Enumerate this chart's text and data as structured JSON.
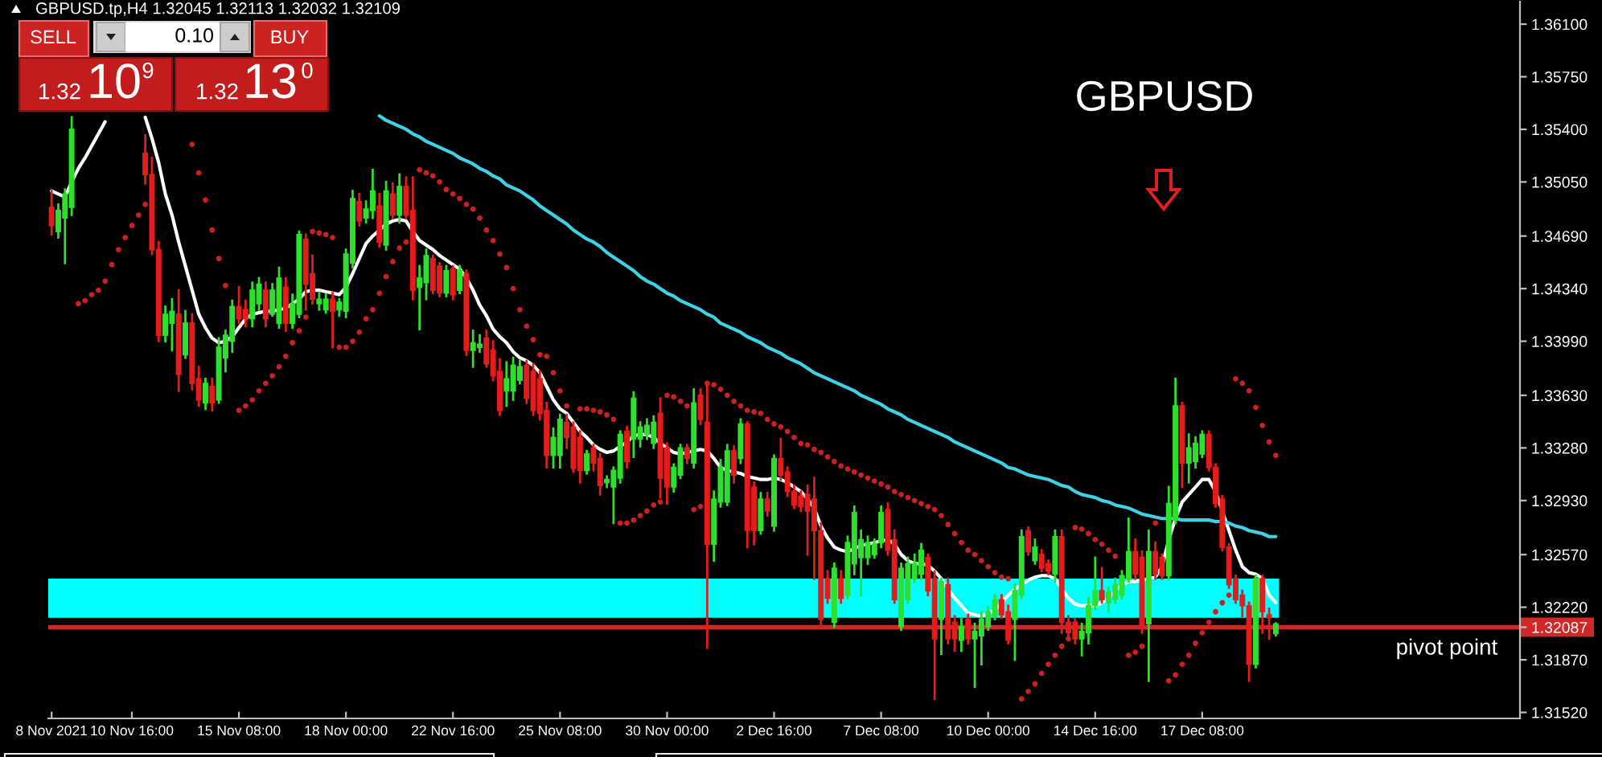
{
  "chart_data": {
    "type": "candlestick",
    "title": "GBPUSD",
    "subtitle": "GBPUSD.tp,H4 1.32045 1.32113 1.32032 1.32109",
    "annotations": [
      "SELL",
      "0.10",
      "BUY",
      "1.32",
      "10",
      "9",
      "1.32",
      "13",
      "0"
    ],
    "categories": [
      "8 Nov 2021",
      null,
      null,
      null,
      null,
      null,
      null,
      null,
      null,
      null,
      null,
      null,
      "10 Nov 16:00",
      null,
      null,
      null,
      null,
      null,
      null,
      null,
      null,
      null,
      null,
      null,
      null,
      null,
      null,
      null,
      "15 Nov 08:00",
      null,
      null,
      null,
      null,
      null,
      null,
      null,
      null,
      null,
      null,
      null,
      null,
      null,
      null,
      null,
      "18 Nov 00:00",
      null,
      null,
      null,
      null,
      null,
      null,
      null,
      null,
      null,
      null,
      null,
      null,
      null,
      null,
      null,
      "22 Nov 16:00",
      null,
      null,
      null,
      null,
      null,
      null,
      null,
      null,
      null,
      null,
      null,
      null,
      null,
      null,
      null,
      "25 Nov 08:00",
      null,
      null,
      null,
      null,
      null,
      null,
      null,
      null,
      null,
      null,
      null,
      null,
      null,
      null,
      null,
      "30 Nov 00:00",
      null,
      null,
      null,
      null,
      null,
      null,
      null,
      null,
      null,
      null,
      null,
      null,
      null,
      null,
      null,
      "2 Dec 16:00",
      null,
      null,
      null,
      null,
      null,
      null,
      null,
      null,
      null,
      null,
      null,
      null,
      null,
      null,
      null,
      "7 Dec 08:00",
      null,
      null,
      null,
      null,
      null,
      null,
      null,
      null,
      null,
      null,
      null,
      null,
      null,
      null,
      null,
      "10 Dec 00:00",
      null,
      null,
      null,
      null,
      null,
      null,
      null,
      null,
      null,
      null,
      null,
      null,
      null,
      null,
      null,
      "14 Dec 16:00",
      null,
      null,
      null,
      null,
      null,
      null,
      null,
      null,
      null,
      null,
      null,
      null,
      null,
      null,
      null,
      "17 Dec 08:00",
      null,
      null,
      null,
      null,
      null,
      null,
      null,
      null,
      null,
      null,
      null,
      null,
      null,
      null,
      null,
      null,
      null,
      null,
      null,
      null,
      null,
      null,
      null,
      null,
      null,
      null,
      null,
      null,
      null,
      null,
      null,
      null,
      null,
      null,
      null,
      null,
      null,
      null,
      null,
      null,
      null,
      null,
      null,
      null,
      null,
      null,
      null
    ],
    "ohlc": [
      [
        1.3488,
        1.3499,
        1.347,
        1.3476
      ],
      [
        1.3472,
        1.349,
        1.3468,
        1.3486
      ],
      [
        1.3481,
        1.35,
        1.3451,
        1.3497
      ],
      [
        1.3488,
        1.3548,
        1.3483,
        1.354
      ],
      null,
      null,
      null,
      null,
      null,
      null,
      null,
      null,
      null,
      null,
      [
        1.3524,
        1.3536,
        1.3504,
        1.351
      ],
      [
        1.351,
        1.3521,
        1.3457,
        1.346
      ],
      [
        1.346,
        1.3465,
        1.3399,
        1.3403
      ],
      [
        1.3403,
        1.3422,
        1.3399,
        1.3417
      ],
      [
        1.3411,
        1.3427,
        1.3393,
        1.3419
      ],
      [
        1.3417,
        1.3433,
        1.3366,
        1.3377
      ],
      [
        1.339,
        1.3419,
        1.3388,
        1.3411
      ],
      [
        1.3411,
        1.3417,
        1.3367,
        1.3371
      ],
      [
        1.3374,
        1.3382,
        1.3356,
        1.336
      ],
      [
        1.3358,
        1.3374,
        1.3354,
        1.3371
      ],
      [
        1.3369,
        1.3374,
        1.3353,
        1.3358
      ],
      [
        1.336,
        1.3401,
        1.3358,
        1.3395
      ],
      [
        1.3388,
        1.3406,
        1.3379,
        1.3403
      ],
      [
        1.3399,
        1.3426,
        1.3392,
        1.3422
      ],
      [
        1.3422,
        1.3435,
        1.3411,
        1.3414
      ],
      [
        1.342,
        1.3426,
        1.3409,
        1.3414
      ],
      [
        1.3414,
        1.3438,
        1.3409,
        1.3433
      ],
      [
        1.3424,
        1.3441,
        1.342,
        1.3437
      ],
      [
        1.3433,
        1.3438,
        1.3409,
        1.3414
      ],
      [
        1.3417,
        1.3437,
        1.3416,
        1.3433
      ],
      [
        1.3411,
        1.3448,
        1.3408,
        1.3441
      ],
      [
        1.3435,
        1.3441,
        1.3406,
        1.3411
      ],
      [
        1.3411,
        1.343,
        1.3408,
        1.3424
      ],
      [
        1.3417,
        1.3472,
        1.3415,
        1.347
      ],
      [
        1.3467,
        1.347,
        1.342,
        1.3437
      ],
      [
        1.3444,
        1.3456,
        1.3424,
        1.3427
      ],
      [
        1.3424,
        1.3431,
        1.342,
        1.3427
      ],
      [
        1.342,
        1.343,
        1.3418,
        1.3427
      ],
      [
        1.3427,
        1.3431,
        1.3395,
        1.3419
      ],
      [
        1.342,
        1.3427,
        1.3416,
        1.3425
      ],
      [
        1.3419,
        1.346,
        1.3415,
        1.3457
      ],
      [
        1.3451,
        1.3499,
        1.3448,
        1.3494
      ],
      [
        1.3492,
        1.3497,
        1.3476,
        1.3479
      ],
      [
        1.3481,
        1.3492,
        1.3478,
        1.3487
      ],
      [
        1.3486,
        1.3513,
        1.3481,
        1.3499
      ],
      [
        1.3489,
        1.3497,
        1.3462,
        1.3465
      ],
      [
        1.3463,
        1.3505,
        1.346,
        1.3499
      ],
      [
        1.3497,
        1.3504,
        1.3481,
        1.3483
      ],
      [
        1.3483,
        1.351,
        1.3478,
        1.3502
      ],
      [
        1.3502,
        1.3508,
        1.3481,
        1.3483
      ],
      [
        1.3486,
        1.3508,
        1.3427,
        1.3433
      ],
      [
        1.3435,
        1.3449,
        1.3407,
        1.3441
      ],
      [
        1.3438,
        1.346,
        1.3427,
        1.3456
      ],
      [
        1.3454,
        1.3456,
        1.3431,
        1.3433
      ],
      [
        1.3449,
        1.3451,
        1.3429,
        1.3431
      ],
      [
        1.3431,
        1.3449,
        1.3429,
        1.3446
      ],
      [
        1.3447,
        1.3449,
        1.3427,
        1.343
      ],
      [
        1.3433,
        1.3449,
        1.3431,
        1.3446
      ],
      [
        1.3444,
        1.3446,
        1.339,
        1.3393
      ],
      [
        1.3393,
        1.3406,
        1.3382,
        1.3398
      ],
      [
        1.3395,
        1.3403,
        1.3392,
        1.3397
      ],
      [
        1.3401,
        1.3406,
        1.3382,
        1.3384
      ],
      [
        1.3393,
        1.3399,
        1.3373,
        1.3376
      ],
      [
        1.3379,
        1.3387,
        1.335,
        1.3353
      ],
      [
        1.3366,
        1.3385,
        1.3356,
        1.3374
      ],
      [
        1.3366,
        1.3388,
        1.336,
        1.3383
      ],
      [
        1.3373,
        1.3386,
        1.3371,
        1.3382
      ],
      [
        1.3383,
        1.3386,
        1.3358,
        1.3361
      ],
      [
        1.3379,
        1.3384,
        1.335,
        1.3353
      ],
      [
        1.3374,
        1.3379,
        1.3347,
        1.3351
      ],
      [
        1.3353,
        1.3358,
        1.3315,
        1.3323
      ],
      [
        1.3323,
        1.3341,
        1.3315,
        1.3335
      ],
      [
        1.3323,
        1.335,
        1.3315,
        1.3347
      ],
      [
        1.3345,
        1.335,
        1.3328,
        1.3335
      ],
      [
        1.3342,
        1.3345,
        1.3312,
        1.3315
      ],
      [
        1.3335,
        1.3339,
        1.3305,
        1.3313
      ],
      [
        1.3313,
        1.3326,
        1.3311,
        1.3324
      ],
      [
        1.3328,
        1.333,
        1.3313,
        1.3318
      ],
      [
        1.3321,
        1.3324,
        1.3297,
        1.3303
      ],
      [
        1.3305,
        1.3309,
        1.3302,
        1.3307
      ],
      [
        1.3302,
        1.3315,
        1.3278,
        1.3313
      ],
      [
        1.3308,
        1.3339,
        1.3305,
        1.3337
      ],
      [
        1.3339,
        1.3342,
        1.3315,
        1.3319
      ],
      [
        1.3334,
        1.3365,
        1.3322,
        1.3361
      ],
      [
        1.3334,
        1.3345,
        1.3329,
        1.3342
      ],
      [
        1.3337,
        1.3347,
        1.3334,
        1.3343
      ],
      [
        1.3331,
        1.3349,
        1.3328,
        1.3345
      ],
      [
        1.3351,
        1.3361,
        1.3295,
        1.3308
      ],
      [
        1.3328,
        1.3331,
        1.3291,
        1.3302
      ],
      [
        1.3302,
        1.3317,
        1.3299,
        1.3315
      ],
      [
        1.331,
        1.333,
        1.3308,
        1.3328
      ],
      [
        1.3328,
        1.333,
        1.3318,
        1.3321
      ],
      [
        1.3318,
        1.3367,
        1.3315,
        1.3358
      ],
      [
        1.3363,
        1.3367,
        1.3344,
        1.3347
      ],
      [
        1.3345,
        1.3371,
        1.3195,
        1.3264
      ],
      [
        1.3264,
        1.3299,
        1.3253,
        1.3294
      ],
      [
        1.3292,
        1.332,
        1.3289,
        1.3315
      ],
      [
        1.3292,
        1.333,
        1.329,
        1.3326
      ],
      [
        1.3326,
        1.3329,
        1.3305,
        1.331
      ],
      [
        1.3321,
        1.3347,
        1.3318,
        1.3344
      ],
      [
        1.3344,
        1.3345,
        1.3262,
        1.3273
      ],
      [
        1.3302,
        1.3305,
        1.3264,
        1.3273
      ],
      [
        1.3273,
        1.3298,
        1.3271,
        1.3294
      ],
      [
        1.3294,
        1.3298,
        1.3283,
        1.3286
      ],
      [
        1.3276,
        1.3323,
        1.3273,
        1.3321
      ],
      [
        1.3321,
        1.3334,
        1.3307,
        1.331
      ],
      [
        1.3312,
        1.3315,
        1.3296,
        1.3299
      ],
      [
        1.3299,
        1.3303,
        1.3288,
        1.329
      ],
      [
        1.3296,
        1.3299,
        1.3286,
        1.3289
      ],
      [
        1.3297,
        1.3303,
        1.3257,
        1.3286
      ],
      [
        1.3294,
        1.3308,
        1.3241,
        1.3273
      ],
      [
        1.3273,
        1.3278,
        1.3209,
        1.3214
      ],
      [
        1.3241,
        1.3246,
        1.3225,
        1.3228
      ],
      [
        1.3212,
        1.3251,
        1.3209,
        1.3248
      ],
      [
        1.3241,
        1.3246,
        1.3225,
        1.3228
      ],
      [
        1.323,
        1.3269,
        1.3228,
        1.3265
      ],
      [
        1.3251,
        1.3289,
        1.3244,
        1.3285
      ],
      [
        1.3255,
        1.3273,
        1.323,
        1.3267
      ],
      [
        1.3255,
        1.3269,
        1.3251,
        1.3265
      ],
      [
        1.3257,
        1.3267,
        1.3255,
        1.3264
      ],
      [
        1.3265,
        1.3289,
        1.3262,
        1.3285
      ],
      [
        1.3287,
        1.3291,
        1.3257,
        1.326
      ],
      [
        1.3267,
        1.3273,
        1.3225,
        1.3227
      ],
      [
        1.3209,
        1.3251,
        1.3207,
        1.3248
      ],
      [
        1.3227,
        1.3255,
        1.3225,
        1.3251
      ],
      [
        1.3241,
        1.3257,
        1.3239,
        1.3251
      ],
      [
        1.3244,
        1.3264,
        1.3241,
        1.326
      ],
      [
        1.3255,
        1.3257,
        1.323,
        1.3233
      ],
      [
        1.3241,
        1.3246,
        1.3161,
        1.3201
      ],
      [
        1.3214,
        1.3241,
        1.3191,
        1.3239
      ],
      [
        1.3237,
        1.3241,
        1.3198,
        1.3201
      ],
      [
        1.3212,
        1.3216,
        1.3193,
        1.3201
      ],
      [
        1.32,
        1.3214,
        1.3193,
        1.3209
      ],
      [
        1.3214,
        1.3217,
        1.3198,
        1.3201
      ],
      [
        1.3201,
        1.3211,
        1.3169,
        1.3206
      ],
      [
        1.3203,
        1.3219,
        1.3184,
        1.3214
      ],
      [
        1.3209,
        1.3222,
        1.3207,
        1.3219
      ],
      [
        1.3216,
        1.323,
        1.3214,
        1.3227
      ],
      [
        1.3227,
        1.323,
        1.3215,
        1.3217
      ],
      [
        1.3219,
        1.3223,
        1.3198,
        1.32
      ],
      [
        1.3214,
        1.3237,
        1.3187,
        1.3233
      ],
      [
        1.323,
        1.3273,
        1.3228,
        1.3269
      ],
      [
        1.3273,
        1.3275,
        1.3257,
        1.3259
      ],
      [
        1.3253,
        1.3267,
        1.3251,
        1.3262
      ],
      [
        1.3257,
        1.326,
        1.3246,
        1.3248
      ],
      [
        1.3251,
        1.3253,
        1.3244,
        1.3246
      ],
      [
        1.3244,
        1.3273,
        1.3239,
        1.3269
      ],
      [
        1.3269,
        1.3273,
        1.3205,
        1.3212
      ],
      [
        1.3212,
        1.3216,
        1.3203,
        1.3205
      ],
      [
        1.3212,
        1.3214,
        1.3198,
        1.3201
      ],
      [
        1.3201,
        1.3211,
        1.319,
        1.3206
      ],
      [
        1.3205,
        1.3228,
        1.3198,
        1.3223
      ],
      [
        1.3223,
        1.3255,
        1.3221,
        1.3233
      ],
      [
        1.3233,
        1.3248,
        1.3225,
        1.3227
      ],
      [
        1.3225,
        1.3235,
        1.3219,
        1.3232
      ],
      [
        1.3227,
        1.3241,
        1.3225,
        1.3237
      ],
      [
        1.323,
        1.3246,
        1.3228,
        1.3243
      ],
      [
        1.3241,
        1.3281,
        1.3239,
        1.3259
      ],
      [
        1.3259,
        1.3267,
        1.3241,
        1.3244
      ],
      [
        1.3255,
        1.3259,
        1.3205,
        1.3209
      ],
      [
        1.3211,
        1.3273,
        1.3173,
        1.3259
      ],
      [
        1.3259,
        1.3265,
        1.3241,
        1.3244
      ],
      [
        1.3255,
        1.3257,
        1.3241,
        1.3243
      ],
      [
        1.3243,
        1.3302,
        1.3241,
        1.3291
      ],
      [
        1.328,
        1.3374,
        1.3278,
        1.3356
      ],
      [
        1.3356,
        1.3358,
        1.3302,
        1.3318
      ],
      [
        1.3318,
        1.3337,
        1.3305,
        1.3328
      ],
      [
        1.3319,
        1.3335,
        1.3315,
        1.3331
      ],
      [
        1.3324,
        1.3339,
        1.3322,
        1.3337
      ],
      [
        1.3337,
        1.3339,
        1.3313,
        1.3315
      ],
      [
        1.3315,
        1.3317,
        1.3289,
        1.3291
      ],
      [
        1.3294,
        1.3296,
        1.326,
        1.3262
      ],
      [
        1.3262,
        1.3264,
        1.3235,
        1.3237
      ],
      [
        1.3241,
        1.3243,
        1.3225,
        1.3227
      ],
      [
        1.323,
        1.3233,
        1.3216,
        1.3223
      ],
      [
        1.3223,
        1.3225,
        1.3173,
        1.3184
      ],
      [
        1.3184,
        1.3243,
        1.3182,
        1.3241
      ],
      [
        1.3241,
        1.3243,
        1.3205,
        1.3219
      ],
      [
        1.3217,
        1.3221,
        1.3201,
        1.3215
      ],
      [
        1.32045,
        1.32113,
        1.32032,
        1.32109
      ],
      null,
      null,
      null,
      null,
      null,
      null,
      null,
      null,
      null,
      null,
      null,
      null,
      null,
      null,
      null,
      null,
      null,
      null,
      null,
      null,
      null,
      null,
      null,
      null,
      null,
      null,
      null,
      null,
      null,
      null,
      null,
      null,
      null,
      null,
      null,
      null
    ],
    "series": [
      {
        "type": "line",
        "color": "#ffffff",
        "values": [
          1.3499,
          1.3497,
          1.3495,
          1.3505,
          1.3514,
          1.3521,
          1.3529,
          1.3537,
          1.3545,
          null,
          null,
          null,
          null,
          null,
          1.3548,
          1.3534,
          1.3518,
          1.3497,
          1.3483,
          1.3465,
          1.3449,
          1.3433,
          1.3417,
          1.3408,
          1.3401,
          1.3398,
          1.3399,
          1.3402,
          1.3408,
          1.3414,
          1.3417,
          1.3418,
          1.3419,
          1.3419,
          1.342,
          1.3421,
          1.3424,
          1.3427,
          1.3432,
          1.3433,
          1.3433,
          1.3432,
          1.3431,
          1.343,
          1.3435,
          1.3444,
          1.3454,
          1.3464,
          1.3469,
          1.3473,
          1.3477,
          1.3479,
          1.348,
          1.3479,
          1.3472,
          1.3466,
          1.3463,
          1.346,
          1.3456,
          1.3453,
          1.345,
          1.3447,
          1.3441,
          1.3433,
          1.3423,
          1.3416,
          1.3407,
          1.3402,
          1.3398,
          1.3392,
          1.3388,
          1.3386,
          1.3383,
          1.3378,
          1.3369,
          1.336,
          1.3354,
          1.3351,
          1.3345,
          1.3339,
          1.3335,
          1.333,
          1.3327,
          1.3325,
          1.3326,
          1.3329,
          1.3332,
          1.3336,
          1.3337,
          1.3337,
          1.3335,
          1.3331,
          1.3328,
          1.3325,
          1.3324,
          1.3325,
          1.3326,
          1.3327,
          1.3326,
          1.3321,
          1.3315,
          1.3313,
          1.3312,
          1.3311,
          1.3309,
          1.3308,
          1.3307,
          1.3307,
          1.3308,
          1.3307,
          1.3305,
          1.3302,
          1.3299,
          1.3294,
          1.3288,
          1.3276,
          1.3268,
          1.3262,
          1.326,
          1.3259,
          1.3261,
          1.3263,
          1.3264,
          1.3265,
          1.3266,
          1.3267,
          1.3264,
          1.3257,
          1.3253,
          1.3251,
          1.3251,
          1.325,
          1.3246,
          1.3241,
          1.3234,
          1.3228,
          1.3223,
          1.3218,
          1.3217,
          1.3216,
          1.3218,
          1.322,
          1.3225,
          1.323,
          1.3234,
          1.3237,
          1.324,
          1.3242,
          1.3243,
          1.3243,
          1.3241,
          1.3234,
          1.3228,
          1.3224,
          1.3223,
          1.3223,
          1.3223,
          1.3225,
          1.3228,
          1.3233,
          1.3237,
          1.3239,
          1.3239,
          1.324,
          1.3241,
          1.3242,
          1.3249,
          1.3267,
          1.3281,
          1.3292,
          1.3297,
          1.3302,
          1.3307,
          1.3307,
          1.3299,
          1.3286,
          1.3273,
          1.326,
          1.3249,
          1.3245,
          1.3244,
          1.3241,
          1.323,
          1.3225,
          null,
          null,
          null,
          null,
          null,
          null,
          null,
          null,
          null,
          null,
          null,
          null,
          null,
          null,
          null,
          null,
          null,
          null,
          null,
          null,
          null,
          null,
          null,
          null,
          null,
          null,
          null,
          null,
          null,
          null,
          null,
          null,
          null,
          null,
          null,
          null
        ]
      },
      {
        "type": "line",
        "color": "#3ed2e4",
        "values": [
          null,
          null,
          null,
          null,
          null,
          null,
          null,
          null,
          null,
          null,
          null,
          null,
          null,
          null,
          null,
          null,
          null,
          null,
          null,
          null,
          null,
          null,
          null,
          null,
          null,
          null,
          null,
          null,
          null,
          null,
          null,
          null,
          null,
          null,
          null,
          null,
          null,
          null,
          null,
          null,
          null,
          null,
          null,
          null,
          null,
          null,
          null,
          null,
          null,
          1.3549,
          1.3546,
          1.3544,
          1.3542,
          1.354,
          1.3537,
          1.3535,
          1.3532,
          1.353,
          1.3528,
          1.3526,
          1.3524,
          1.3521,
          1.3519,
          1.3517,
          1.3514,
          1.3512,
          1.3509,
          1.3507,
          1.3503,
          1.3501,
          1.3499,
          1.3496,
          1.3493,
          1.3489,
          1.3486,
          1.3483,
          1.348,
          1.3477,
          1.3473,
          1.347,
          1.3467,
          1.3465,
          1.3462,
          1.3458,
          1.3455,
          1.3452,
          1.3449,
          1.3446,
          1.3442,
          1.3439,
          1.3437,
          1.3434,
          1.3431,
          1.3429,
          1.3426,
          1.3424,
          1.3422,
          1.342,
          1.3417,
          1.3415,
          1.3411,
          1.3409,
          1.3407,
          1.3405,
          1.3402,
          1.34,
          1.3398,
          1.3395,
          1.3393,
          1.3391,
          1.3388,
          1.3386,
          1.3384,
          1.3381,
          1.3378,
          1.3376,
          1.3374,
          1.3372,
          1.337,
          1.3368,
          1.3366,
          1.3363,
          1.3361,
          1.3359,
          1.3357,
          1.3354,
          1.3352,
          1.335,
          1.3347,
          1.3345,
          1.3343,
          1.3341,
          1.3339,
          1.3337,
          1.3335,
          1.3332,
          1.333,
          1.3328,
          1.3326,
          1.3324,
          1.3322,
          1.332,
          1.3318,
          1.3315,
          1.3314,
          1.3312,
          1.331,
          1.3309,
          1.3308,
          1.3307,
          1.3305,
          1.3303,
          1.3302,
          1.3299,
          1.3297,
          1.3296,
          1.3295,
          1.3293,
          1.3292,
          1.329,
          1.3289,
          1.3288,
          1.3286,
          1.3284,
          1.3283,
          1.3282,
          1.3281,
          1.3281,
          1.3281,
          1.328,
          1.328,
          1.328,
          1.328,
          1.328,
          1.3279,
          1.3279,
          1.3278,
          1.3276,
          1.3275,
          1.3273,
          1.3272,
          1.3271,
          1.3269,
          1.3269,
          null,
          null,
          null,
          null,
          null,
          null,
          null,
          null,
          null,
          null,
          null,
          null,
          null,
          null,
          null,
          null,
          null,
          null,
          null,
          null,
          null,
          null,
          null,
          null,
          null,
          null,
          null,
          null,
          null,
          null,
          null,
          null,
          null,
          null,
          null,
          null
        ]
      },
      {
        "type": "scatter",
        "color": "#cc1f1f",
        "marker": "circle",
        "values": [
          null,
          null,
          null,
          null,
          1.3424,
          1.3426,
          1.343,
          1.3433,
          1.3439,
          1.345,
          1.346,
          1.3468,
          1.3476,
          1.3483,
          1.349,
          null,
          null,
          null,
          null,
          null,
          null,
          1.353,
          1.3511,
          1.3493,
          1.3473,
          1.3454,
          1.3436,
          1.3421,
          1.3353,
          1.3356,
          1.336,
          1.3366,
          1.3371,
          1.3376,
          1.3382,
          1.3389,
          1.3398,
          1.3406,
          1.3415,
          1.3472,
          1.3471,
          1.347,
          1.3468,
          1.3395,
          1.3395,
          1.3399,
          1.3405,
          1.3414,
          1.342,
          1.3431,
          1.3442,
          1.3452,
          1.3461,
          1.3465,
          null,
          1.3513,
          1.3511,
          1.3509,
          1.3505,
          1.35,
          1.3497,
          1.3494,
          1.349,
          1.3487,
          1.3481,
          1.3473,
          1.3466,
          1.3457,
          1.3448,
          1.3434,
          1.342,
          1.3409,
          1.34,
          1.339,
          1.3389,
          1.3378,
          1.3366,
          1.3356,
          1.3315,
          1.3354,
          1.3354,
          1.3353,
          1.3352,
          1.335,
          1.3347,
          1.3278,
          1.3278,
          1.328,
          1.3283,
          1.3286,
          1.329,
          1.3292,
          1.3363,
          1.3362,
          1.3359,
          1.3356,
          1.3287,
          1.3289,
          1.3371,
          1.337,
          1.3367,
          1.3363,
          1.3359,
          1.3356,
          1.3353,
          1.3352,
          1.3351,
          1.3347,
          1.3344,
          1.3342,
          1.3339,
          1.3335,
          1.3331,
          1.333,
          1.3327,
          1.3325,
          1.3322,
          1.3319,
          1.3316,
          1.3314,
          1.3312,
          1.331,
          1.3308,
          1.3306,
          1.3304,
          1.3302,
          1.3299,
          1.3297,
          1.3295,
          1.3293,
          1.3291,
          1.3289,
          1.3287,
          1.3283,
          1.3277,
          1.3271,
          1.3265,
          1.326,
          1.3257,
          1.3253,
          1.3249,
          1.3245,
          1.3242,
          1.3241,
          null,
          1.3161,
          1.3166,
          1.3171,
          1.3178,
          1.3184,
          1.319,
          1.3196,
          1.3201,
          1.3275,
          1.3274,
          1.3271,
          1.3267,
          1.3264,
          1.326,
          1.3256,
          null,
          1.319,
          1.3192,
          1.3196,
          null,
          1.3278,
          null,
          1.3173,
          1.3177,
          1.3184,
          1.319,
          1.3198,
          1.3205,
          1.3212,
          1.3219,
          1.3225,
          1.323,
          1.3374,
          1.3371,
          1.3366,
          1.3355,
          1.3343,
          1.3332,
          1.3323,
          null,
          null,
          null,
          null,
          null,
          null,
          null,
          null,
          null,
          null,
          null,
          null,
          null,
          null,
          null,
          null,
          null,
          null,
          null,
          null,
          null,
          null,
          null,
          null,
          null,
          null,
          null,
          null,
          null,
          null,
          null,
          null,
          null,
          null,
          null,
          null
        ]
      }
    ],
    "ylim": [
      1.3148,
      1.3625
    ],
    "yticks": [
      {
        "value": 1.361,
        "label": "1.36100"
      },
      {
        "value": 1.3575,
        "label": "1.35750"
      },
      {
        "value": 1.354,
        "label": "1.35400"
      },
      {
        "value": 1.3505,
        "label": "1.35050"
      },
      {
        "value": 1.3469,
        "label": "1.34690"
      },
      {
        "value": 1.3434,
        "label": "1.34340"
      },
      {
        "value": 1.3399,
        "label": "1.33990"
      },
      {
        "value": 1.3363,
        "label": "1.33630"
      },
      {
        "value": 1.3328,
        "label": "1.33280"
      },
      {
        "value": 1.3293,
        "label": "1.32930"
      },
      {
        "value": 1.3257,
        "label": "1.32570"
      },
      {
        "value": 1.3222,
        "label": "1.32220"
      },
      {
        "value": 1.32087,
        "label": "1.32087"
      },
      {
        "value": 1.3187,
        "label": "1.31870"
      },
      {
        "value": 1.3152,
        "label": "1.31520"
      }
    ],
    "bands": [
      {
        "axis": "y",
        "from": 1.3215,
        "to": 1.3241,
        "color": "#00ffff"
      }
    ],
    "ref_lines": [
      {
        "axis": "y",
        "value": 1.32087,
        "label": "pivot point",
        "color": "#d02828"
      }
    ]
  }
}
